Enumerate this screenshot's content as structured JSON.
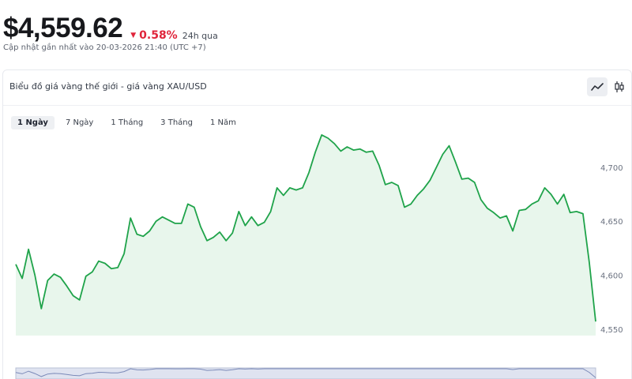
{
  "header": {
    "price": "$4,559.62",
    "change": "0.58%",
    "change_direction": "down",
    "period": "24h qua",
    "updated": "Cập nhật gần nhất vào 20-03-2026 21:40 (UTC +7)"
  },
  "card": {
    "title": "Biểu đồ giá vàng thế giới - giá vàng XAU/USD",
    "view_icons": [
      "line-chart-icon",
      "candlestick-icon"
    ],
    "active_view": "line"
  },
  "ranges": [
    {
      "label": "1 Ngày",
      "active": true
    },
    {
      "label": "7 Ngày",
      "active": false
    },
    {
      "label": "1 Tháng",
      "active": false
    },
    {
      "label": "3 Tháng",
      "active": false
    },
    {
      "label": "1 Năm",
      "active": false
    }
  ],
  "colors": {
    "line": "#1fa34a",
    "fill": "#e8f6ec",
    "down": "#e0253b",
    "navigator": "#dfe3f0"
  },
  "chart_data": {
    "type": "area",
    "y": [
      4610,
      4597,
      4624,
      4600,
      4569,
      4595,
      4601,
      4598,
      4590,
      4581,
      4577,
      4599,
      4603,
      4613,
      4611,
      4606,
      4607,
      4620,
      4653,
      4638,
      4636,
      4641,
      4650,
      4654,
      4651,
      4648,
      4648,
      4666,
      4663,
      4645,
      4632,
      4635,
      4640,
      4632,
      4639,
      4659,
      4646,
      4654,
      4646,
      4649,
      4659,
      4681,
      4674,
      4681,
      4679,
      4681,
      4695,
      4714,
      4730,
      4727,
      4722,
      4715,
      4719,
      4716,
      4717,
      4714,
      4715,
      4702,
      4684,
      4686,
      4683,
      4663,
      4666,
      4674,
      4680,
      4688,
      4700,
      4712,
      4720,
      4705,
      4689,
      4690,
      4686,
      4670,
      4662,
      4658,
      4653,
      4655,
      4641,
      4660,
      4661,
      4666,
      4669,
      4681,
      4675,
      4666,
      4675,
      4658,
      4659,
      4657,
      4612,
      4557
    ],
    "ylim": [
      4544,
      4738
    ],
    "yticks": [
      {
        "value": 4550,
        "label": "4,550"
      },
      {
        "value": 4600,
        "label": "4,600"
      },
      {
        "value": 4650,
        "label": "4,650"
      },
      {
        "value": 4700,
        "label": "4,700"
      }
    ],
    "grid": false,
    "navigator": true
  }
}
